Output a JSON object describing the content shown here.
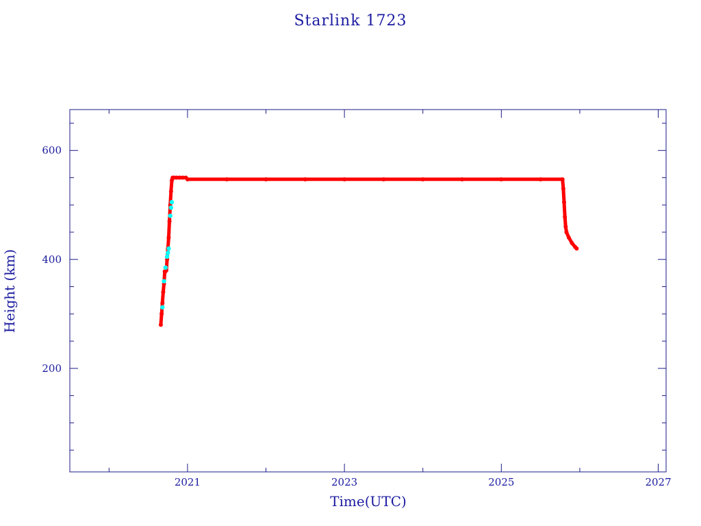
{
  "chart_data": {
    "type": "scatter",
    "title": "Starlink 1723",
    "xlabel": "Time(UTC)",
    "ylabel": "Height (km)",
    "xlim": [
      2019.5,
      2027.1
    ],
    "ylim": [
      10,
      675
    ],
    "x_major_ticks": [
      2021,
      2023,
      2025,
      2027
    ],
    "x_tick_labels": [
      "2021",
      "2023",
      "2025",
      "2027"
    ],
    "x_minor_ticks": [
      2020,
      2022,
      2024,
      2026
    ],
    "y_major_ticks": [
      200,
      400,
      600
    ],
    "y_tick_labels": [
      "200",
      "400",
      "600"
    ],
    "y_minor_ticks": [
      50,
      100,
      150,
      250,
      300,
      350,
      450,
      500,
      550,
      650
    ],
    "grid": false,
    "colors": {
      "frame": "#1a1a8a",
      "text": "#1a1aa0",
      "primary": "#ff0000",
      "secondary": "#00ffff"
    },
    "series": [
      {
        "color": "#ff0000",
        "x": [
          2020.66,
          2020.67,
          2020.68,
          2020.69,
          2020.7,
          2020.71,
          2020.72,
          2020.73,
          2020.74,
          2020.75,
          2020.76,
          2020.77,
          2020.78,
          2020.79,
          2020.8,
          2020.81,
          2020.83,
          2020.86,
          2020.9,
          2020.94,
          2020.98,
          2021.0,
          2021.5,
          2022.0,
          2022.5,
          2023.0,
          2023.5,
          2024.0,
          2024.5,
          2025.0,
          2025.5,
          2025.78,
          2025.79,
          2025.8,
          2025.81,
          2025.82,
          2025.83,
          2025.86,
          2025.9,
          2025.94,
          2025.96
        ],
        "y": [
          280,
          300,
          320,
          340,
          355,
          378,
          378,
          380,
          400,
          420,
          440,
          470,
          500,
          525,
          545,
          550,
          550,
          550,
          550,
          550,
          550,
          547,
          547,
          547,
          547,
          547,
          547,
          547,
          547,
          547,
          547,
          547,
          530,
          505,
          478,
          460,
          450,
          440,
          430,
          423,
          420
        ]
      },
      {
        "color": "#00ffff",
        "x": [
          2020.68,
          2020.7,
          2020.72,
          2020.74,
          2020.75,
          2020.76,
          2020.78,
          2020.79,
          2020.8
        ],
        "y": [
          312,
          360,
          385,
          405,
          412,
          420,
          480,
          495,
          505
        ]
      }
    ]
  }
}
